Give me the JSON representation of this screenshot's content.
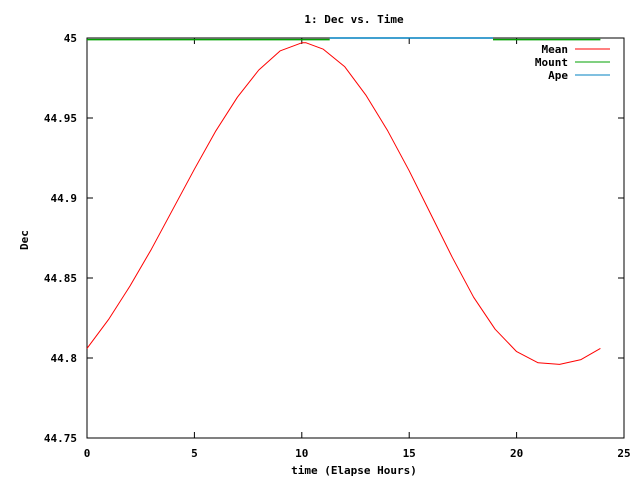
{
  "chart_data": {
    "type": "line",
    "title": "1: Dec vs. Time",
    "xlabel": "time (Elapse Hours)",
    "ylabel": "Dec",
    "xlim": [
      0,
      25
    ],
    "ylim": [
      44.75,
      45
    ],
    "xticks": [
      0,
      5,
      10,
      15,
      20,
      25
    ],
    "xtick_labels": [
      "0",
      "5",
      "10",
      "15",
      "20",
      "25"
    ],
    "yticks": [
      44.75,
      44.8,
      44.85,
      44.9,
      44.95,
      45
    ],
    "ytick_labels": [
      "44.75",
      "44.8",
      "44.85",
      "44.9",
      "44.95",
      "45"
    ],
    "grid": false,
    "legend_position": "top-right",
    "series": [
      {
        "name": "Mean",
        "color": "#ff0000",
        "x": [
          0,
          1,
          2,
          3,
          4,
          5,
          6,
          7,
          8,
          9,
          10,
          10.2,
          11,
          12,
          13,
          14,
          15,
          16,
          17,
          18,
          19,
          20,
          21,
          22,
          23,
          23.9
        ],
        "y": [
          44.806,
          44.824,
          44.845,
          44.868,
          44.893,
          44.918,
          44.942,
          44.963,
          44.98,
          44.992,
          44.997,
          44.997,
          44.993,
          44.982,
          44.964,
          44.942,
          44.917,
          44.89,
          44.863,
          44.838,
          44.818,
          44.804,
          44.797,
          44.796,
          44.799,
          44.806
        ]
      },
      {
        "name": "Mount",
        "color": "#00a000",
        "segments": [
          {
            "x": [
              0,
              11.3
            ],
            "y": [
              44.999,
              44.999
            ]
          },
          {
            "x": [
              18.9,
              23.9
            ],
            "y": [
              44.999,
              44.999
            ]
          }
        ]
      },
      {
        "name": "Ape",
        "color": "#0080c0",
        "segments": [
          {
            "x": [
              11.3,
              18.9
            ],
            "y": [
              45.0,
              45.0
            ]
          }
        ]
      }
    ]
  }
}
